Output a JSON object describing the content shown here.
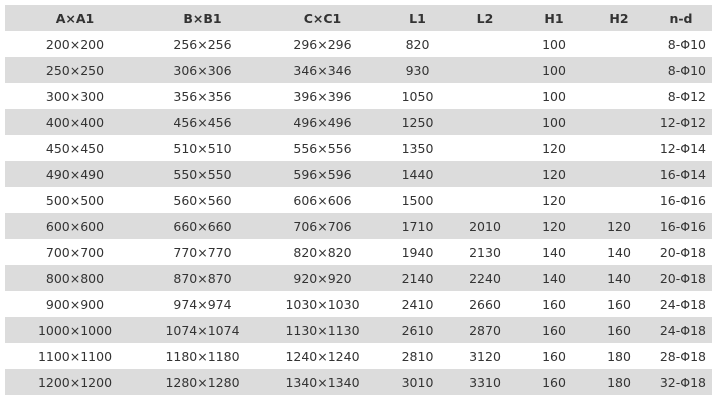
{
  "table": {
    "headers": [
      "A×A1",
      "B×B1",
      "C×C1",
      "L1",
      "L2",
      "H1",
      "H2",
      "n-d"
    ],
    "rows": [
      [
        "200×200",
        "256×256",
        "296×296",
        "820",
        "",
        "100",
        "",
        "8-Φ10"
      ],
      [
        "250×250",
        "306×306",
        "346×346",
        "930",
        "",
        "100",
        "",
        "8-Φ10"
      ],
      [
        "300×300",
        "356×356",
        "396×396",
        "1050",
        "",
        "100",
        "",
        "8-Φ12"
      ],
      [
        "400×400",
        "456×456",
        "496×496",
        "1250",
        "",
        "100",
        "",
        "12-Φ12"
      ],
      [
        "450×450",
        "510×510",
        "556×556",
        "1350",
        "",
        "120",
        "",
        "12-Φ14"
      ],
      [
        "490×490",
        "550×550",
        "596×596",
        "1440",
        "",
        "120",
        "",
        "16-Φ14"
      ],
      [
        "500×500",
        "560×560",
        "606×606",
        "1500",
        "",
        "120",
        "",
        "16-Φ16"
      ],
      [
        "600×600",
        "660×660",
        "706×706",
        "1710",
        "2010",
        "120",
        "120",
        "16-Φ16"
      ],
      [
        "700×700",
        "770×770",
        "820×820",
        "1940",
        "2130",
        "140",
        "140",
        "20-Φ18"
      ],
      [
        "800×800",
        "870×870",
        "920×920",
        "2140",
        "2240",
        "140",
        "140",
        "20-Φ18"
      ],
      [
        "900×900",
        "974×974",
        "1030×1030",
        "2410",
        "2660",
        "160",
        "160",
        "24-Φ18"
      ],
      [
        "1000×1000",
        "1074×1074",
        "1130×1130",
        "2610",
        "2870",
        "160",
        "160",
        "24-Φ18"
      ],
      [
        "1100×1100",
        "1180×1180",
        "1240×1240",
        "2810",
        "3120",
        "160",
        "180",
        "28-Φ18"
      ],
      [
        "1200×1200",
        "1280×1280",
        "1340×1340",
        "3010",
        "3310",
        "160",
        "180",
        "32-Φ18"
      ]
    ]
  }
}
